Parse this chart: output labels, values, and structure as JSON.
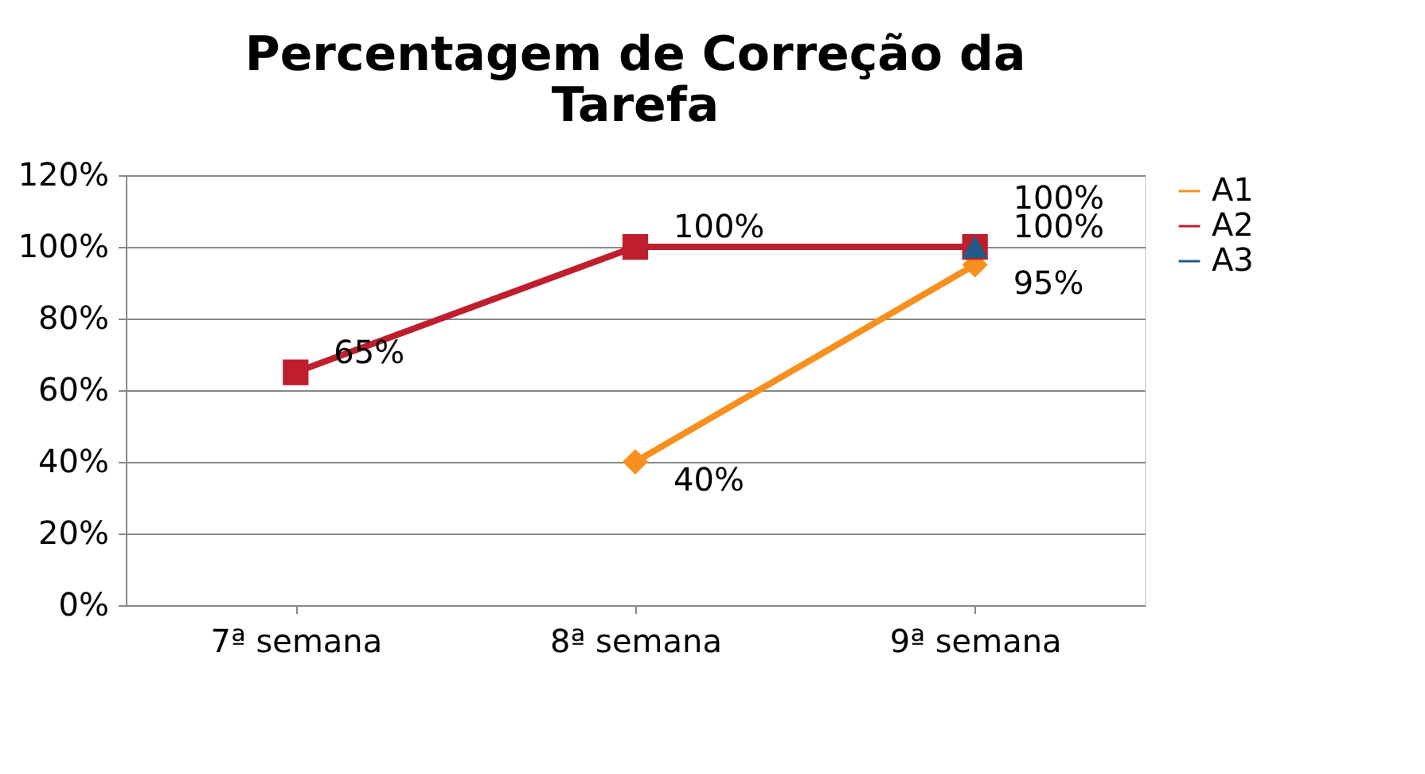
{
  "chart_data": {
    "type": "line",
    "title": "Percentagem de Correção da Tarefa",
    "categories": [
      "7ª semana",
      "8ª semana",
      "9ª semana"
    ],
    "series": [
      {
        "name": "A1",
        "color": "#f7901e",
        "marker": "diamond",
        "values": [
          null,
          40,
          95
        ],
        "value_labels": [
          null,
          "40%",
          "95%"
        ]
      },
      {
        "name": "A2",
        "color": "#be1e2d",
        "marker": "square",
        "values": [
          65,
          100,
          100
        ],
        "value_labels": [
          "65%",
          "100%",
          "100%"
        ]
      },
      {
        "name": "A3",
        "color": "#1f5c8b",
        "marker": "triangle",
        "values": [
          null,
          null,
          100
        ],
        "value_labels": [
          null,
          null,
          "100%"
        ]
      }
    ],
    "ylim": [
      0,
      120
    ],
    "yticks": [
      {
        "value": 0,
        "label": "0%"
      },
      {
        "value": 20,
        "label": "20%"
      },
      {
        "value": 40,
        "label": "40%"
      },
      {
        "value": 60,
        "label": "60%"
      },
      {
        "value": 80,
        "label": "80%"
      },
      {
        "value": 100,
        "label": "100%"
      },
      {
        "value": 120,
        "label": "120%"
      }
    ],
    "grid": "y",
    "legend": "right"
  }
}
